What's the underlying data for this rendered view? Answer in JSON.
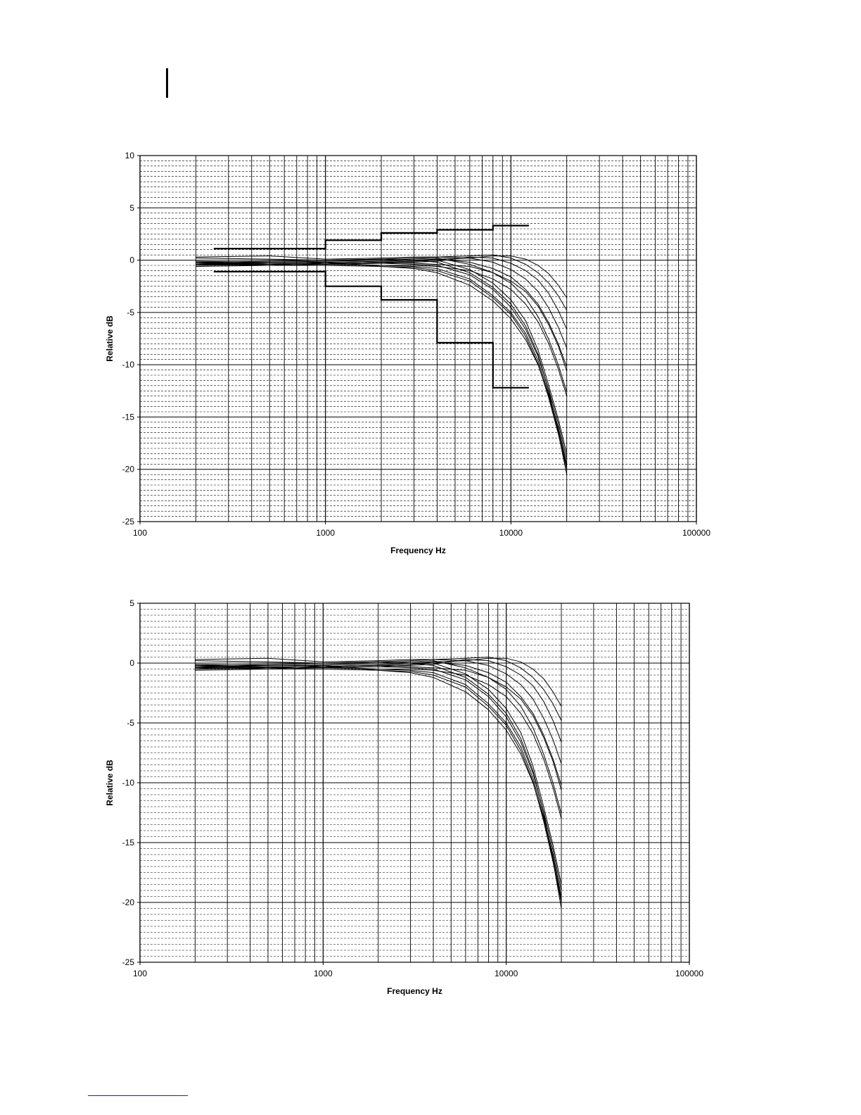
{
  "page": {},
  "chart_data": [
    {
      "type": "line",
      "xscale": "log",
      "xlim": [
        100,
        100000
      ],
      "ylim": [
        -25,
        10
      ],
      "xlabel": "Frequency Hz",
      "ylabel": "Relative dB",
      "xticks": [
        "100",
        "1000",
        "10000",
        "100000"
      ],
      "yticks": [
        "10",
        "5",
        "0",
        "-5",
        "-10",
        "-15",
        "-20",
        "-25"
      ],
      "grid": true,
      "limits": [
        {
          "x": [
            250,
            1000,
            1000,
            2000,
            2000,
            4000,
            4000,
            8000,
            8000,
            12500
          ],
          "y": [
            1.1,
            1.1,
            1.9,
            1.9,
            2.6,
            2.6,
            2.9,
            2.9,
            3.3,
            3.3
          ]
        },
        {
          "x": [
            250,
            1000,
            1000,
            2000,
            2000,
            4000,
            4000,
            8000,
            8000,
            12500
          ],
          "y": [
            -1.1,
            -1.1,
            -2.5,
            -2.5,
            -3.8,
            -3.8,
            -7.9,
            -7.9,
            -12.2,
            -12.2
          ]
        }
      ],
      "series": [
        {
          "x": [
            200,
            500,
            1000,
            2000,
            3000,
            4000,
            6000,
            8000,
            10000,
            12000,
            14000,
            16000,
            18000,
            20000
          ],
          "y": [
            0.2,
            0.1,
            0,
            0.1,
            0,
            -0.2,
            -1.2,
            -2.6,
            -4.2,
            -6.3,
            -9.0,
            -12.5,
            -16.5,
            -20.5
          ]
        },
        {
          "x": [
            200,
            500,
            1000,
            2000,
            3000,
            4000,
            6000,
            8000,
            10000,
            12000,
            14000,
            16000,
            18000,
            20000
          ],
          "y": [
            -0.3,
            -0.4,
            -0.3,
            -0.5,
            -0.6,
            -0.8,
            -1.8,
            -3.4,
            -5.0,
            -7.0,
            -9.6,
            -12.8,
            -16.0,
            -19.5
          ]
        },
        {
          "x": [
            200,
            500,
            1000,
            2000,
            3000,
            4000,
            6000,
            8000,
            10000,
            12000,
            14000,
            16000,
            18000,
            20000
          ],
          "y": [
            -0.5,
            -0.3,
            -0.4,
            -0.3,
            -0.4,
            -0.5,
            -1.4,
            -2.8,
            -4.5,
            -6.6,
            -9.2,
            -12.4,
            -15.6,
            -19.0
          ]
        },
        {
          "x": [
            200,
            500,
            1000,
            2000,
            3000,
            4000,
            6000,
            8000,
            10000,
            12000,
            14000,
            16000,
            18000,
            20000
          ],
          "y": [
            -0.4,
            -0.5,
            -0.2,
            -0.6,
            -0.8,
            -1.2,
            -2.4,
            -3.9,
            -5.6,
            -7.6,
            -10.0,
            -13.0,
            -16.2,
            -19.8
          ]
        },
        {
          "x": [
            200,
            500,
            1000,
            2000,
            3000,
            4000,
            6000,
            8000,
            10000,
            12000,
            14000,
            16000,
            18000,
            20000
          ],
          "y": [
            -0.2,
            -0.3,
            -0.3,
            -0.2,
            -0.1,
            0,
            -0.9,
            -2.2,
            -3.8,
            -5.8,
            -8.6,
            -12.0,
            -15.2,
            -18.5
          ]
        },
        {
          "x": [
            200,
            500,
            1000,
            2000,
            3000,
            4000,
            6000,
            8000,
            10000,
            12000,
            14000,
            16000,
            18000,
            20000
          ],
          "y": [
            -0.6,
            -0.5,
            -0.5,
            -0.6,
            -0.7,
            -1.0,
            -2.0,
            -3.6,
            -5.2,
            -7.3,
            -9.9,
            -13.2,
            -16.6,
            -20.0
          ]
        },
        {
          "x": [
            200,
            500,
            1000,
            2000,
            3000,
            4000,
            6000,
            8000,
            10000,
            12000,
            14000,
            16000,
            18000,
            20000
          ],
          "y": [
            -0.1,
            -0.2,
            -0.1,
            0,
            0.1,
            0.2,
            -0.4,
            -1.2,
            -2.2,
            -3.6,
            -5.4,
            -7.6,
            -10.0,
            -12.6
          ]
        },
        {
          "x": [
            200,
            500,
            1000,
            2000,
            3000,
            4000,
            6000,
            8000,
            10000,
            12000,
            14000,
            16000,
            18000,
            20000
          ],
          "y": [
            -0.3,
            -0.2,
            -0.2,
            -0.1,
            0,
            0.1,
            -0.2,
            -0.8,
            -1.6,
            -2.8,
            -4.2,
            -6.0,
            -8.0,
            -10.2
          ]
        },
        {
          "x": [
            200,
            500,
            1000,
            2000,
            3000,
            4000,
            6000,
            8000,
            10000,
            12000,
            14000,
            16000,
            18000,
            20000
          ],
          "y": [
            -0.2,
            -0.4,
            -0.3,
            -0.2,
            -0.1,
            0.1,
            0.2,
            -0.2,
            -0.9,
            -1.8,
            -3.0,
            -4.6,
            -6.4,
            -8.4
          ]
        },
        {
          "x": [
            200,
            500,
            1000,
            2000,
            3000,
            4000,
            6000,
            8000,
            10000,
            12000,
            14000,
            16000,
            18000,
            20000
          ],
          "y": [
            -0.4,
            -0.3,
            -0.4,
            -0.3,
            -0.2,
            -0.1,
            0.3,
            0.2,
            -0.3,
            -1.0,
            -1.9,
            -3.2,
            -4.8,
            -6.6
          ]
        },
        {
          "x": [
            200,
            500,
            1000,
            2000,
            3000,
            4000,
            6000,
            8000,
            10000,
            12000,
            14000,
            16000,
            18000,
            20000
          ],
          "y": [
            0.3,
            0.4,
            0.1,
            0.2,
            0.3,
            0.3,
            0.4,
            0.5,
            0.2,
            -0.4,
            -1.2,
            -2.2,
            -3.4,
            -4.8
          ]
        },
        {
          "x": [
            200,
            500,
            1000,
            2000,
            3000,
            4000,
            6000,
            8000,
            10000,
            12000,
            14000,
            16000,
            18000,
            20000
          ],
          "y": [
            -0.2,
            -0.1,
            0,
            0.1,
            0.2,
            0.3,
            0.2,
            0.4,
            0.4,
            0.1,
            -0.5,
            -1.3,
            -2.4,
            -3.6
          ]
        },
        {
          "x": [
            200,
            500,
            1000,
            2000,
            3000,
            4000,
            6000,
            8000,
            10000,
            12000,
            14000,
            16000,
            18000,
            20000
          ],
          "y": [
            -0.5,
            -0.4,
            -0.3,
            -0.2,
            -0.3,
            -0.4,
            -0.6,
            -1.2,
            -2.0,
            -3.0,
            -4.4,
            -6.2,
            -8.2,
            -10.6
          ]
        },
        {
          "x": [
            200,
            500,
            1000,
            2000,
            3000,
            4000,
            6000,
            8000,
            10000,
            12000,
            14000,
            16000,
            18000,
            20000
          ],
          "y": [
            -0.3,
            -0.5,
            -0.4,
            -0.5,
            -0.5,
            -0.6,
            -1.0,
            -1.8,
            -2.8,
            -4.2,
            -5.9,
            -8.0,
            -10.4,
            -13.0
          ]
        }
      ]
    },
    {
      "type": "line",
      "xscale": "log",
      "xlim": [
        100,
        100000
      ],
      "ylim": [
        -25,
        5
      ],
      "xlabel": "Frequency Hz",
      "ylabel": "Relative dB",
      "xticks": [
        "100",
        "1000",
        "10000",
        "100000"
      ],
      "yticks": [
        "5",
        "0",
        "-5",
        "-10",
        "-15",
        "-20",
        "-25"
      ],
      "grid": true,
      "series": [
        {
          "x": [
            200,
            500,
            1000,
            2000,
            3000,
            4000,
            6000,
            8000,
            10000,
            12000,
            14000,
            16000,
            18000,
            20000
          ],
          "y": [
            0.2,
            0.1,
            0,
            0.1,
            0,
            -0.2,
            -1.2,
            -2.6,
            -4.2,
            -6.3,
            -9.0,
            -12.5,
            -16.5,
            -20.5
          ]
        },
        {
          "x": [
            200,
            500,
            1000,
            2000,
            3000,
            4000,
            6000,
            8000,
            10000,
            12000,
            14000,
            16000,
            18000,
            20000
          ],
          "y": [
            -0.3,
            -0.4,
            -0.3,
            -0.5,
            -0.6,
            -0.8,
            -1.8,
            -3.4,
            -5.0,
            -7.0,
            -9.6,
            -12.8,
            -16.0,
            -19.5
          ]
        },
        {
          "x": [
            200,
            500,
            1000,
            2000,
            3000,
            4000,
            6000,
            8000,
            10000,
            12000,
            14000,
            16000,
            18000,
            20000
          ],
          "y": [
            -0.5,
            -0.3,
            -0.4,
            -0.3,
            -0.4,
            -0.5,
            -1.4,
            -2.8,
            -4.5,
            -6.6,
            -9.2,
            -12.4,
            -15.6,
            -19.0
          ]
        },
        {
          "x": [
            200,
            500,
            1000,
            2000,
            3000,
            4000,
            6000,
            8000,
            10000,
            12000,
            14000,
            16000,
            18000,
            20000
          ],
          "y": [
            -0.4,
            -0.5,
            -0.2,
            -0.6,
            -0.8,
            -1.2,
            -2.4,
            -3.9,
            -5.6,
            -7.6,
            -10.0,
            -13.0,
            -16.2,
            -19.8
          ]
        },
        {
          "x": [
            200,
            500,
            1000,
            2000,
            3000,
            4000,
            6000,
            8000,
            10000,
            12000,
            14000,
            16000,
            18000,
            20000
          ],
          "y": [
            -0.2,
            -0.3,
            -0.3,
            -0.2,
            -0.1,
            0,
            -0.9,
            -2.2,
            -3.8,
            -5.8,
            -8.6,
            -12.0,
            -15.2,
            -18.5
          ]
        },
        {
          "x": [
            200,
            500,
            1000,
            2000,
            3000,
            4000,
            6000,
            8000,
            10000,
            12000,
            14000,
            16000,
            18000,
            20000
          ],
          "y": [
            -0.6,
            -0.5,
            -0.5,
            -0.6,
            -0.7,
            -1.0,
            -2.0,
            -3.6,
            -5.2,
            -7.3,
            -9.9,
            -13.2,
            -16.6,
            -20.0
          ]
        },
        {
          "x": [
            200,
            500,
            1000,
            2000,
            3000,
            4000,
            6000,
            8000,
            10000,
            12000,
            14000,
            16000,
            18000,
            20000
          ],
          "y": [
            -0.1,
            -0.2,
            -0.1,
            0,
            0.1,
            0.2,
            -0.4,
            -1.2,
            -2.2,
            -3.6,
            -5.4,
            -7.6,
            -10.0,
            -12.6
          ]
        },
        {
          "x": [
            200,
            500,
            1000,
            2000,
            3000,
            4000,
            6000,
            8000,
            10000,
            12000,
            14000,
            16000,
            18000,
            20000
          ],
          "y": [
            -0.3,
            -0.2,
            -0.2,
            -0.1,
            0,
            0.1,
            -0.2,
            -0.8,
            -1.6,
            -2.8,
            -4.2,
            -6.0,
            -8.0,
            -10.2
          ]
        },
        {
          "x": [
            200,
            500,
            1000,
            2000,
            3000,
            4000,
            6000,
            8000,
            10000,
            12000,
            14000,
            16000,
            18000,
            20000
          ],
          "y": [
            -0.2,
            -0.4,
            -0.3,
            -0.2,
            -0.1,
            0.1,
            0.2,
            -0.2,
            -0.9,
            -1.8,
            -3.0,
            -4.6,
            -6.4,
            -8.4
          ]
        },
        {
          "x": [
            200,
            500,
            1000,
            2000,
            3000,
            4000,
            6000,
            8000,
            10000,
            12000,
            14000,
            16000,
            18000,
            20000
          ],
          "y": [
            -0.4,
            -0.3,
            -0.4,
            -0.3,
            -0.2,
            -0.1,
            0.3,
            0.2,
            -0.3,
            -1.0,
            -1.9,
            -3.2,
            -4.8,
            -6.6
          ]
        },
        {
          "x": [
            200,
            500,
            1000,
            2000,
            3000,
            4000,
            6000,
            8000,
            10000,
            12000,
            14000,
            16000,
            18000,
            20000
          ],
          "y": [
            0.3,
            0.4,
            0.1,
            0.2,
            0.3,
            0.3,
            0.4,
            0.5,
            0.2,
            -0.4,
            -1.2,
            -2.2,
            -3.4,
            -4.8
          ]
        },
        {
          "x": [
            200,
            500,
            1000,
            2000,
            3000,
            4000,
            6000,
            8000,
            10000,
            12000,
            14000,
            16000,
            18000,
            20000
          ],
          "y": [
            -0.2,
            -0.1,
            0,
            0.1,
            0.2,
            0.3,
            0.2,
            0.4,
            0.4,
            0.1,
            -0.5,
            -1.3,
            -2.4,
            -3.6
          ]
        },
        {
          "x": [
            200,
            500,
            1000,
            2000,
            3000,
            4000,
            6000,
            8000,
            10000,
            12000,
            14000,
            16000,
            18000,
            20000
          ],
          "y": [
            -0.5,
            -0.4,
            -0.3,
            -0.2,
            -0.3,
            -0.4,
            -0.6,
            -1.2,
            -2.0,
            -3.0,
            -4.4,
            -6.2,
            -8.2,
            -10.6
          ]
        },
        {
          "x": [
            200,
            500,
            1000,
            2000,
            3000,
            4000,
            6000,
            8000,
            10000,
            12000,
            14000,
            16000,
            18000,
            20000
          ],
          "y": [
            -0.3,
            -0.5,
            -0.4,
            -0.5,
            -0.5,
            -0.6,
            -1.0,
            -1.8,
            -2.8,
            -4.2,
            -5.9,
            -8.0,
            -10.4,
            -13.0
          ]
        }
      ]
    }
  ]
}
